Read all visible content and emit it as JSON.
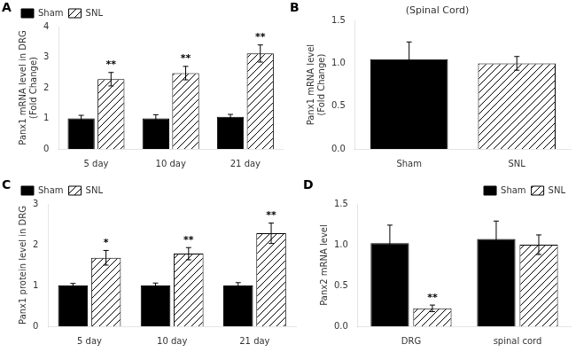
{
  "chart_data": [
    {
      "type": "bar",
      "annotations": [
        "A"
      ],
      "categories": [
        "5 day",
        "10 day",
        "21 day"
      ],
      "series": [
        {
          "name": "Sham",
          "color": "#000000",
          "values": [
            1.0,
            1.0,
            1.05
          ],
          "errors": [
            0.1,
            0.12,
            0.08
          ]
        },
        {
          "name": "SNL",
          "color": "#ffffff",
          "values": [
            2.28,
            2.48,
            3.12
          ],
          "errors": [
            0.22,
            0.22,
            0.28
          ],
          "annotations": [
            "**",
            "**",
            "**"
          ]
        }
      ],
      "ylabel": "Panx1 mRNA level in DRG\n(Fold Change)",
      "ylim": [
        0,
        4
      ],
      "yticks": [
        0,
        1,
        2,
        3,
        4
      ],
      "grid": false,
      "legend": "upper left"
    },
    {
      "type": "bar",
      "annotations": [
        "B"
      ],
      "title": "(Spinal Cord)",
      "categories": [
        "Sham",
        "SNL"
      ],
      "values": [
        1.05,
        1.0
      ],
      "errors": [
        0.2,
        0.08
      ],
      "colors": [
        "#000000",
        "#ffffff"
      ],
      "ylabel": "Panx1 mRNA level\n(Fold Change)",
      "ylim": [
        0,
        1.5
      ],
      "yticks": [
        {
          "value": 0,
          "label": "0.0"
        },
        0.5,
        {
          "value": 1,
          "label": "1.0"
        },
        1.5
      ],
      "grid": false
    },
    {
      "type": "bar",
      "annotations": [
        "C"
      ],
      "categories": [
        "5 day",
        "10 day",
        "21 day"
      ],
      "series": [
        {
          "name": "Sham",
          "color": "#000000",
          "values": [
            1.0,
            1.0,
            1.0
          ],
          "errors": [
            0.05,
            0.06,
            0.07
          ]
        },
        {
          "name": "SNL",
          "color": "#ffffff",
          "values": [
            1.68,
            1.78,
            2.28
          ],
          "errors": [
            0.18,
            0.15,
            0.25
          ],
          "annotations": [
            "*",
            "**",
            "**"
          ]
        }
      ],
      "ylabel": "Panx1 protein level in DRG",
      "ylim": [
        0,
        3
      ],
      "yticks": [
        0,
        1,
        2,
        3
      ],
      "grid": false,
      "legend": "upper left"
    },
    {
      "type": "bar",
      "annotations": [
        "D"
      ],
      "categories": [
        "DRG",
        "spinal cord"
      ],
      "series": [
        {
          "name": "Sham",
          "color": "#000000",
          "values": [
            1.02,
            1.07
          ],
          "errors": [
            0.22,
            0.22
          ]
        },
        {
          "name": "SNL",
          "color": "#ffffff",
          "values": [
            0.22,
            1.0
          ],
          "errors": [
            0.04,
            0.12
          ],
          "annotations": [
            "**",
            null
          ]
        }
      ],
      "ylabel": "Panx2 mRNA level",
      "ylim": [
        0,
        1.5
      ],
      "yticks": [
        {
          "value": 0,
          "label": "0.0"
        },
        0.5,
        {
          "value": 1,
          "label": "1.0"
        },
        1.5
      ],
      "grid": false,
      "legend": "upper right"
    }
  ]
}
